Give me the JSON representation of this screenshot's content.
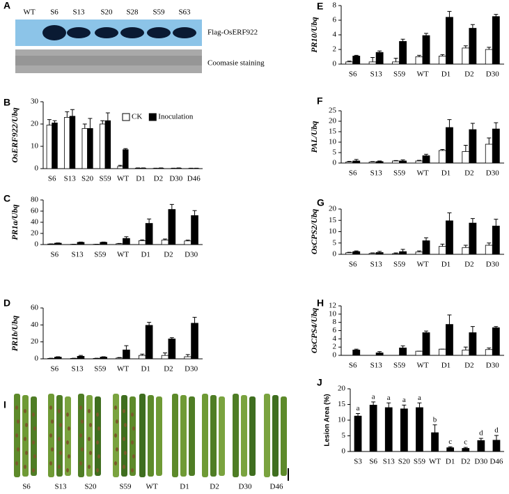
{
  "panel_A": {
    "label": "A",
    "lanes": [
      "WT",
      "S6",
      "S13",
      "S20",
      "S28",
      "S59",
      "S63"
    ],
    "rows": [
      "Flag-OsERF922",
      "Coomasie staining"
    ]
  },
  "panel_I": {
    "label": "I",
    "lanes": [
      "S6",
      "S13",
      "S20",
      "S59",
      "WT",
      "D1",
      "D2",
      "D30",
      "D46"
    ]
  },
  "chart_data": [
    {
      "type": "bar",
      "label": "B",
      "ylabel": "OsERF922/Ubq",
      "legend": "upper right",
      "categories": [
        "S6",
        "S13",
        "S20",
        "S59",
        "WT",
        "D1",
        "D2",
        "D30",
        "D46"
      ],
      "series": [
        {
          "name": "CK",
          "color": "#ffffff",
          "values": [
            19.5,
            23,
            18,
            20,
            1,
            0.2,
            0.1,
            0.1,
            0.1
          ],
          "errors": [
            2.5,
            2.5,
            2,
            1.5,
            0.5,
            0.1,
            0.1,
            0.1,
            0.1
          ]
        },
        {
          "name": "Inoculation",
          "color": "#000000",
          "values": [
            20.5,
            23.5,
            18,
            21.5,
            8.5,
            0.2,
            0.2,
            0.2,
            0.1
          ],
          "errors": [
            1,
            3,
            4.5,
            3.5,
            0.5,
            0.1,
            0.1,
            0.1,
            0.1
          ]
        }
      ],
      "ylim": [
        0,
        30
      ],
      "yticks": [
        0,
        10,
        20,
        30
      ]
    },
    {
      "type": "bar",
      "label": "C",
      "ylabel": "PR1a/Ubq",
      "categories": [
        "S6",
        "S13",
        "S59",
        "WT",
        "D1",
        "D2",
        "D30"
      ],
      "series": [
        {
          "color": "#ffffff",
          "values": [
            1,
            0.5,
            0.5,
            1.5,
            7,
            8,
            6.5
          ],
          "errors": [
            0.3,
            0.2,
            0.2,
            0.5,
            1.5,
            2,
            1.5
          ]
        },
        {
          "color": "#000000",
          "values": [
            2.5,
            4,
            4,
            11,
            38,
            63,
            52
          ],
          "errors": [
            0.5,
            0.5,
            0.5,
            3,
            8,
            9,
            9
          ]
        }
      ],
      "ylim": [
        0,
        80
      ],
      "yticks": [
        0,
        20,
        40,
        60,
        80
      ]
    },
    {
      "type": "bar",
      "label": "D",
      "ylabel": "PR1b/Ubq",
      "categories": [
        "S6",
        "S13",
        "S59",
        "WT",
        "D1",
        "D2",
        "D30"
      ],
      "series": [
        {
          "color": "#ffffff",
          "values": [
            0.5,
            0.5,
            0.5,
            1,
            4,
            4,
            2.5
          ],
          "errors": [
            0.2,
            0.2,
            0.2,
            0.5,
            1.5,
            3,
            2.5
          ]
        },
        {
          "color": "#000000",
          "values": [
            2,
            3,
            2,
            10.5,
            39.5,
            23.5,
            42
          ],
          "errors": [
            0.5,
            1,
            0.5,
            5,
            3.5,
            1.5,
            7
          ]
        }
      ],
      "ylim": [
        0,
        60
      ],
      "yticks": [
        0,
        20,
        40,
        60
      ]
    },
    {
      "type": "bar",
      "label": "E",
      "ylabel": "PR10/Ubq",
      "categories": [
        "S6",
        "S13",
        "S59",
        "WT",
        "D1",
        "D2",
        "D30"
      ],
      "series": [
        {
          "color": "#ffffff",
          "values": [
            0.3,
            0.3,
            0.3,
            1,
            1.1,
            2.2,
            2
          ],
          "errors": [
            0.1,
            0.6,
            0.5,
            0.2,
            0.2,
            0.3,
            0.3
          ]
        },
        {
          "color": "#000000",
          "values": [
            1.1,
            1.6,
            3.1,
            3.9,
            6.4,
            4.9,
            6.5
          ],
          "errors": [
            0.1,
            0.2,
            0.3,
            0.3,
            0.8,
            0.5,
            0.3
          ]
        }
      ],
      "ylim": [
        0,
        8
      ],
      "yticks": [
        0,
        2,
        4,
        6,
        8
      ]
    },
    {
      "type": "bar",
      "label": "F",
      "ylabel": "PAL/Ubq",
      "categories": [
        "S6",
        "S13",
        "S59",
        "WT",
        "D1",
        "D2",
        "D30"
      ],
      "series": [
        {
          "color": "#ffffff",
          "values": [
            0.5,
            0.5,
            1,
            1,
            6,
            5.5,
            9
          ],
          "errors": [
            0.3,
            0.2,
            0.2,
            0.3,
            0.5,
            3,
            3
          ]
        },
        {
          "color": "#000000",
          "values": [
            1,
            0.7,
            1,
            3.5,
            17,
            16,
            16.3
          ],
          "errors": [
            0.7,
            0.3,
            0.5,
            0.7,
            3.8,
            3,
            3
          ]
        }
      ],
      "ylim": [
        0,
        25
      ],
      "yticks": [
        0,
        5,
        10,
        15,
        20,
        25
      ]
    },
    {
      "type": "bar",
      "label": "G",
      "ylabel": "OsCPS2/Ubq",
      "categories": [
        "S6",
        "S13",
        "S59",
        "WT",
        "D1",
        "D2",
        "D30"
      ],
      "series": [
        {
          "color": "#ffffff",
          "values": [
            0.7,
            0.4,
            0.3,
            1,
            3.5,
            3,
            4
          ],
          "errors": [
            0.2,
            0.2,
            0.3,
            0.5,
            1,
            1,
            1
          ]
        },
        {
          "color": "#000000",
          "values": [
            1.2,
            0.8,
            1.2,
            6,
            14.8,
            13.8,
            12.5
          ],
          "errors": [
            0.3,
            0.5,
            1,
            1.3,
            3.5,
            2,
            3
          ]
        }
      ],
      "ylim": [
        0,
        20
      ],
      "yticks": [
        0,
        5,
        10,
        15,
        20
      ]
    },
    {
      "type": "bar",
      "label": "H",
      "ylabel": "OsCPS4/Ubq",
      "categories": [
        "S6",
        "S13",
        "S59",
        "WT",
        "D1",
        "D2",
        "D30"
      ],
      "series": [
        {
          "color": "#ffffff",
          "values": [
            0,
            0,
            0,
            1,
            1.5,
            1.3,
            1.4
          ],
          "errors": [
            0,
            0,
            0,
            0,
            0,
            0.7,
            0.4
          ]
        },
        {
          "color": "#000000",
          "values": [
            1.3,
            0.6,
            1.8,
            5.5,
            7.5,
            5.5,
            6.7
          ],
          "errors": [
            0.2,
            0.3,
            0.5,
            0.4,
            2.3,
            1.5,
            0.3
          ]
        }
      ],
      "ylim": [
        0,
        12
      ],
      "yticks": [
        0,
        2,
        4,
        6,
        8,
        10,
        12
      ]
    },
    {
      "type": "bar",
      "label": "J",
      "ylabel": "Lesion Area (%)",
      "categories": [
        "S3",
        "S6",
        "S13",
        "S20",
        "S59",
        "WT",
        "D1",
        "D2",
        "D30",
        "D46"
      ],
      "series": [
        {
          "color": "#000000",
          "values": [
            11.3,
            14.8,
            14,
            13.6,
            14,
            6,
            1.2,
            1,
            3.5,
            3.6
          ],
          "errors": [
            0.8,
            1,
            1.5,
            1.2,
            1.5,
            2.5,
            0.3,
            0.3,
            0.7,
            1.5
          ]
        }
      ],
      "letters": [
        "a",
        "a",
        "a",
        "a",
        "a",
        "b",
        "c",
        "c",
        "d",
        "d"
      ],
      "ylim": [
        0,
        20
      ],
      "yticks": [
        0,
        5,
        10,
        15,
        20
      ]
    }
  ]
}
